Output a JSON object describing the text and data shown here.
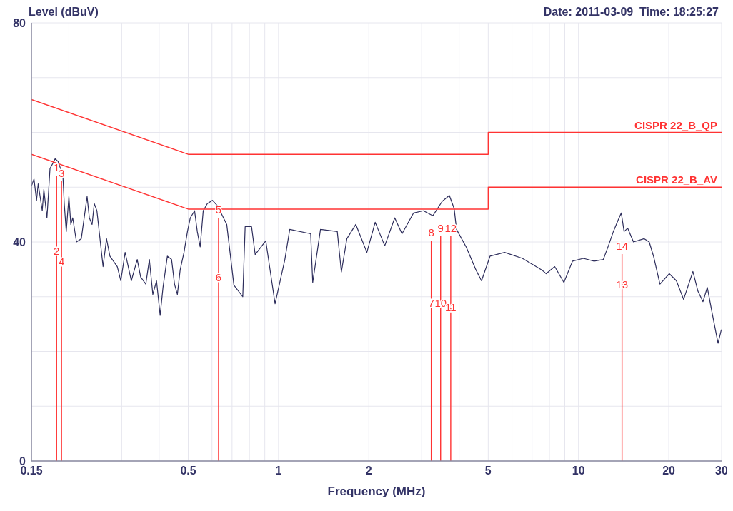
{
  "chart_data": {
    "type": "line",
    "xlabel": "Frequency (MHz)",
    "ylabel": "Level (dBuV)",
    "log": "x",
    "grid": true,
    "xlim": [
      0.15,
      30
    ],
    "ylim": [
      0,
      80
    ],
    "xticks": [
      0.15,
      {
        "value": 0.2,
        "label": null
      },
      {
        "value": 0.3,
        "label": null
      },
      {
        "value": 0.4,
        "label": null
      },
      0.5,
      {
        "value": 0.6,
        "label": null
      },
      {
        "value": 0.7,
        "label": null
      },
      {
        "value": 0.8,
        "label": null
      },
      {
        "value": 0.9,
        "label": null
      },
      1,
      2,
      {
        "value": 3,
        "label": null
      },
      {
        "value": 4,
        "label": null
      },
      5,
      {
        "value": 6,
        "label": null
      },
      {
        "value": 7,
        "label": null
      },
      {
        "value": 8,
        "label": null
      },
      {
        "value": 9,
        "label": null
      },
      10,
      20,
      30
    ],
    "yticks": [
      0,
      {
        "value": 10,
        "label": null
      },
      {
        "value": 20,
        "label": null
      },
      {
        "value": 30,
        "label": null
      },
      40,
      {
        "value": 50,
        "label": null
      },
      {
        "value": 60,
        "label": null
      },
      {
        "value": 70,
        "label": null
      },
      80
    ],
    "series": [
      {
        "color": "#2e2e5c",
        "x": [
          0.15,
          0.153,
          0.156,
          0.158,
          0.163,
          0.165,
          0.169,
          0.173,
          0.177,
          0.18,
          0.184,
          0.187,
          0.191,
          0.193,
          0.196,
          0.2,
          0.203,
          0.206,
          0.212,
          0.22,
          0.23,
          0.234,
          0.239,
          0.243,
          0.248,
          0.26,
          0.267,
          0.274,
          0.29,
          0.298,
          0.308,
          0.323,
          0.338,
          0.347,
          0.361,
          0.371,
          0.381,
          0.392,
          0.403,
          0.412,
          0.426,
          0.44,
          0.45,
          0.46,
          0.47,
          0.484,
          0.497,
          0.508,
          0.525,
          0.536,
          0.548,
          0.561,
          0.579,
          0.602,
          0.626,
          0.672,
          0.71,
          0.76,
          0.774,
          0.813,
          0.836,
          0.907,
          0.974,
          1.05,
          1.09,
          1.28,
          1.3,
          1.38,
          1.57,
          1.62,
          1.69,
          1.81,
          1.97,
          2.1,
          2.26,
          2.44,
          2.58,
          2.82,
          3.04,
          3.27,
          3.51,
          3.71,
          3.85,
          3.92,
          4.23,
          4.55,
          4.75,
          5.07,
          5.67,
          6.5,
          7.54,
          7.8,
          8.33,
          8.94,
          9.55,
          10.38,
          11.27,
          12.1,
          12.58,
          13.07,
          13.51,
          13.89,
          14.19,
          14.59,
          15.25,
          16.56,
          17.21,
          17.79,
          18.69,
          20.08,
          21.21,
          22.41,
          24.07,
          25.02,
          26.01,
          26.88,
          27.93,
          29.19,
          29.95
        ],
        "values": [
          50.2,
          51.5,
          47.6,
          50.6,
          45.7,
          49.6,
          44.4,
          53.4,
          54.4,
          55.2,
          54.7,
          53.6,
          52.1,
          47.0,
          41.9,
          48.3,
          43.2,
          44.4,
          40.0,
          40.6,
          48.3,
          44.4,
          43.2,
          47.0,
          45.7,
          35.5,
          40.6,
          37.4,
          35.5,
          32.9,
          38.1,
          32.9,
          36.8,
          33.6,
          32.3,
          36.8,
          30.4,
          32.9,
          26.6,
          31.7,
          37.4,
          36.8,
          32.3,
          30.4,
          34.9,
          38.1,
          41.9,
          44.4,
          45.7,
          41.9,
          39.1,
          45.7,
          47.0,
          47.6,
          46.6,
          43.2,
          32.1,
          30.0,
          42.8,
          42.8,
          37.7,
          40.2,
          28.7,
          36.8,
          42.3,
          41.5,
          32.6,
          42.3,
          41.9,
          34.5,
          40.6,
          43.2,
          38.1,
          43.6,
          39.3,
          44.4,
          41.5,
          45.3,
          45.7,
          44.8,
          47.4,
          48.5,
          46.1,
          42.3,
          39.0,
          34.9,
          32.9,
          37.4,
          38.1,
          37.0,
          34.9,
          34.2,
          35.5,
          32.6,
          36.5,
          37.0,
          36.5,
          36.8,
          39.3,
          41.9,
          43.8,
          45.3,
          41.9,
          42.5,
          40.0,
          40.6,
          40.0,
          37.4,
          32.3,
          34.2,
          32.9,
          29.5,
          34.6,
          31.0,
          29.1,
          31.7,
          26.9,
          21.5,
          24.0
        ]
      },
      {
        "name": "CISPR 22_B_QP",
        "color": "#ff3333",
        "x": [
          0.15,
          0.5,
          5,
          5,
          30
        ],
        "values": [
          66,
          56,
          56,
          60,
          60
        ]
      },
      {
        "name": "CISPR 22_B_AV",
        "color": "#ff3333",
        "x": [
          0.15,
          0.5,
          5,
          5,
          30
        ],
        "values": [
          56,
          46,
          46,
          50,
          50
        ]
      },
      {
        "type": "line",
        "color": "#ff3333",
        "x": [
          0.182,
          0.182
        ],
        "values": [
          0,
          52.1
        ]
      },
      {
        "type": "line",
        "color": "#ff3333",
        "x": [
          0.189,
          0.189
        ],
        "values": [
          0,
          51.1
        ]
      },
      {
        "type": "line",
        "color": "#ff3333",
        "x": [
          0.631,
          0.631
        ],
        "values": [
          0,
          44.4
        ]
      },
      {
        "type": "line",
        "color": "#ff3333",
        "x": [
          3.23,
          3.23
        ],
        "values": [
          0,
          40.2
        ]
      },
      {
        "type": "line",
        "color": "#ff3333",
        "x": [
          3.47,
          3.47
        ],
        "values": [
          0,
          41.1
        ]
      },
      {
        "type": "line",
        "color": "#ff3333",
        "x": [
          3.75,
          3.75
        ],
        "values": [
          0,
          41.1
        ]
      },
      {
        "type": "line",
        "color": "#ff3333",
        "x": [
          13.97,
          13.97
        ],
        "values": [
          0,
          37.8
        ]
      }
    ],
    "annotations": [
      "Date: 2011-03-09  Time: 18:25:27",
      {
        "text": "1",
        "x": 0.182,
        "y": 52.1
      },
      {
        "text": "2",
        "x": 0.182,
        "y": 38.4
      },
      {
        "text": "3",
        "x": 0.189,
        "y": 51.1
      },
      {
        "text": "4",
        "x": 0.189,
        "y": 36.5
      },
      {
        "text": "5",
        "x": 0.631,
        "y": 44.4
      },
      {
        "text": "6",
        "x": 0.631,
        "y": 33.6
      },
      {
        "text": "7",
        "x": 3.23,
        "y": 28.9
      },
      {
        "text": "8",
        "x": 3.23,
        "y": 40.2
      },
      {
        "text": "9",
        "x": 3.47,
        "y": 41.1
      },
      {
        "text": "10",
        "x": 3.47,
        "y": 28.9
      },
      {
        "text": "11",
        "x": 3.75,
        "y": 28.2
      },
      {
        "text": "12",
        "x": 3.75,
        "y": 41.1
      },
      {
        "text": "13",
        "x": 13.97,
        "y": 32.3
      },
      {
        "text": "14",
        "x": 13.97,
        "y": 37.8
      }
    ]
  }
}
